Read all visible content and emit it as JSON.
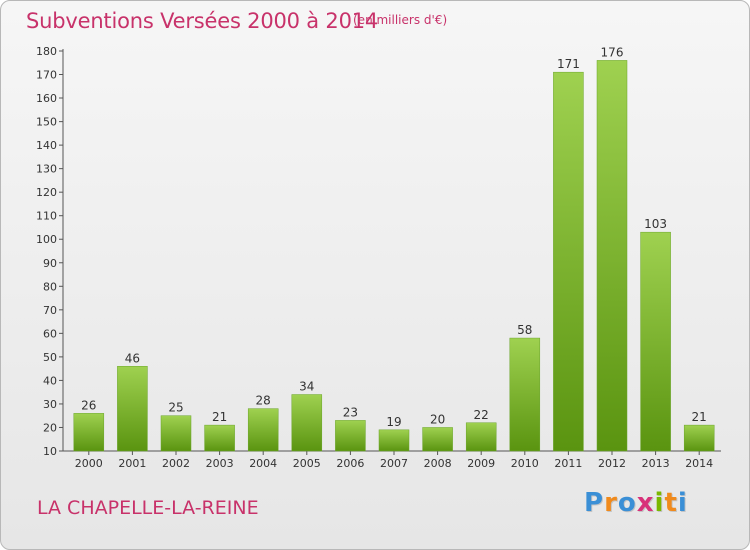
{
  "title": "Subventions Versées 2000 à 2014",
  "unit_note": "(en milliers d'€)",
  "commune": "LA CHAPELLE-LA-REINE",
  "logo": {
    "letters": [
      "P",
      "r",
      "o",
      "x",
      "i",
      "t",
      "i"
    ],
    "colors": [
      "#3a8fd6",
      "#f08a1c",
      "#3a8fd6",
      "#d8327a",
      "#7ab800",
      "#f08a1c",
      "#3a8fd6"
    ]
  },
  "colors": {
    "bar_top": "#9fd150",
    "bar_bottom": "#5a9410",
    "title": "#c8326a"
  },
  "chart_data": {
    "type": "bar",
    "categories": [
      "2000",
      "2001",
      "2002",
      "2003",
      "2004",
      "2005",
      "2006",
      "2007",
      "2008",
      "2009",
      "2010",
      "2011",
      "2012",
      "2013",
      "2014"
    ],
    "values": [
      26,
      46,
      25,
      21,
      28,
      34,
      23,
      19,
      20,
      22,
      58,
      171,
      176,
      103,
      21
    ],
    "title": "Subventions Versées 2000 à 2014",
    "xlabel": "",
    "ylabel": "",
    "ylim": [
      10,
      180
    ],
    "yticks": [
      10,
      20,
      30,
      40,
      50,
      60,
      70,
      80,
      90,
      100,
      110,
      120,
      130,
      140,
      150,
      160,
      170,
      180
    ],
    "grid": false,
    "data_labels": true
  }
}
